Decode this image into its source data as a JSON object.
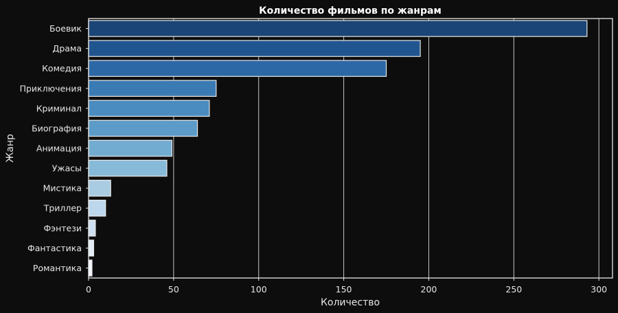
{
  "chart_data": {
    "type": "bar",
    "orientation": "horizontal",
    "title": "Количество фильмов по жанрам",
    "xlabel": "Количество",
    "ylabel": "Жанр",
    "categories": [
      "Боевик",
      "Драма",
      "Комедия",
      "Приключения",
      "Криминал",
      "Биография",
      "Анимация",
      "Ужасы",
      "Мистика",
      "Триллер",
      "Фэнтези",
      "Фантастика",
      "Романтика"
    ],
    "values": [
      293,
      195,
      175,
      75,
      71,
      64,
      49,
      46,
      13,
      10,
      4,
      3,
      2
    ],
    "xlim": [
      0,
      308
    ],
    "xticks": [
      0,
      50,
      100,
      150,
      200,
      250,
      300
    ],
    "grid": "vertical",
    "colors": [
      "#1a4576",
      "#21558f",
      "#2c68a5",
      "#3b7bb4",
      "#4a8cbf",
      "#5d9bc8",
      "#72acd1",
      "#87bad9",
      "#a9cce2",
      "#bdd7ec",
      "#cfe1f2",
      "#e3eef8",
      "#f2f7fd"
    ],
    "background": "#0d0d0d",
    "bar_edge_color": "#e8e8e8"
  }
}
